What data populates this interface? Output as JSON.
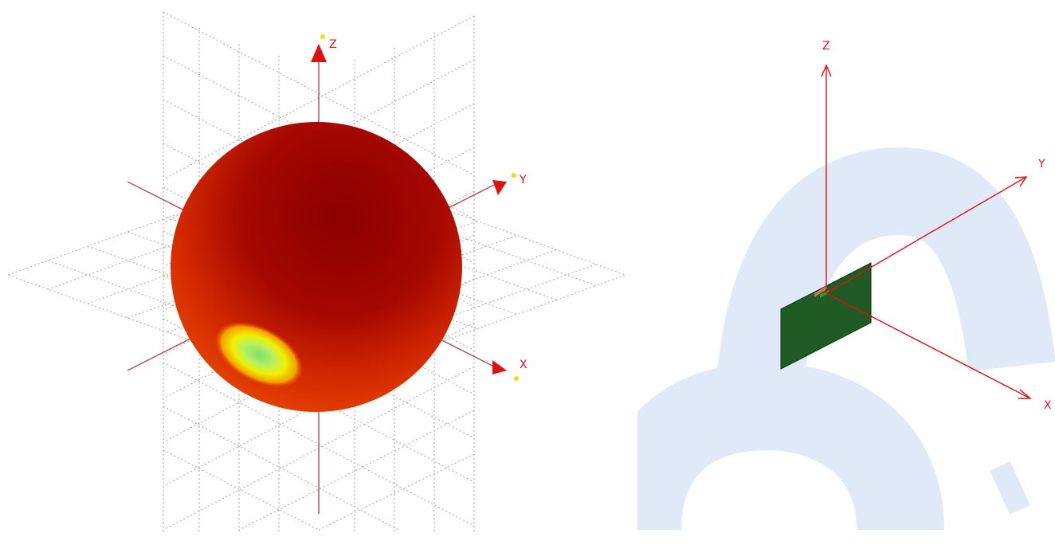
{
  "radiation_pattern_view": {
    "axis_labels": {
      "x": "X",
      "y": "Y",
      "z": "Z"
    },
    "colors": {
      "axis": "#e01010",
      "axis_line": "#b05060",
      "grid": "#b0b0b0",
      "pattern_high": "#8a0000",
      "pattern_mid": "#d42a00",
      "pattern_low_yellow": "#f0f000",
      "pattern_lowest_green": "#7ee070"
    }
  },
  "antenna_geometry_view": {
    "axis_labels": {
      "x": "X",
      "y": "Y",
      "z": "Z"
    },
    "colors": {
      "axis": "#e01010",
      "pcb": "#1f5b22",
      "pcb_edge": "#0f3a12",
      "feed": "#c87850",
      "watermark": "#dfe9f7"
    }
  }
}
